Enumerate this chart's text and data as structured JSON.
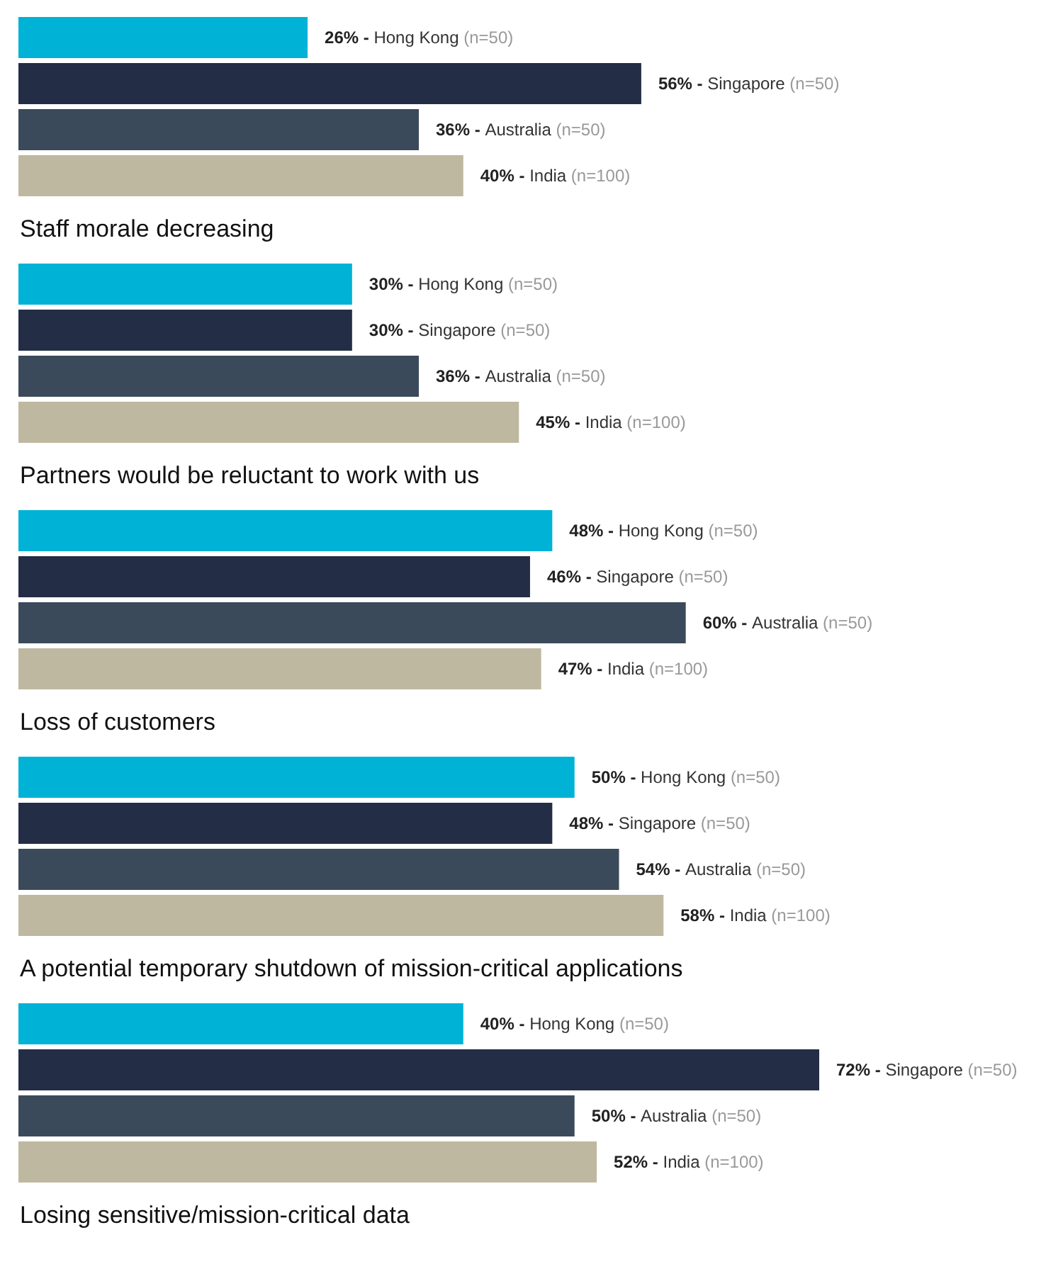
{
  "chart_data": [
    {
      "type": "bar",
      "orientation": "horizontal",
      "title": "Staff morale decreasing",
      "categories": [
        null,
        null,
        null,
        null
      ],
      "values": [
        26,
        56,
        36,
        40
      ],
      "colors": [
        "#00b2d6",
        "#232d45",
        "#3b4a5a",
        "#bfb8a0"
      ],
      "value_labels": [
        "26% - Hong Kong (n=50)",
        "56% - Singapore (n=50)",
        "36% - Australia (n=50)",
        "40% - India (n=100)"
      ],
      "tick_labels": false
    },
    {
      "type": "bar",
      "orientation": "horizontal",
      "title": "Partners would be reluctant to work with us",
      "categories": [
        null,
        null,
        null,
        null
      ],
      "values": [
        30,
        30,
        36,
        45
      ],
      "colors": [
        "#00b2d6",
        "#232d45",
        "#3b4a5a",
        "#bfb8a0"
      ],
      "value_labels": [
        "30% - Hong Kong (n=50)",
        "30% - Singapore (n=50)",
        "36% - Australia (n=50)",
        "45% - India (n=100)"
      ],
      "tick_labels": false
    },
    {
      "type": "bar",
      "orientation": "horizontal",
      "title": "Loss of customers",
      "categories": [
        null,
        null,
        null,
        null
      ],
      "values": [
        48,
        46,
        60,
        47
      ],
      "colors": [
        "#00b2d6",
        "#232d45",
        "#3b4a5a",
        "#bfb8a0"
      ],
      "value_labels": [
        "48% - Hong Kong (n=50)",
        "46% - Singapore (n=50)",
        "60% - Australia (n=50)",
        "47% - India (n=100)"
      ],
      "tick_labels": false
    },
    {
      "type": "bar",
      "orientation": "horizontal",
      "title": "A potential temporary shutdown of mission-critical applications",
      "categories": [
        null,
        null,
        null,
        null
      ],
      "values": [
        50,
        48,
        54,
        58
      ],
      "colors": [
        "#00b2d6",
        "#232d45",
        "#3b4a5a",
        "#bfb8a0"
      ],
      "value_labels": [
        "50% - Hong Kong (n=50)",
        "48% - Singapore (n=50)",
        "54% - Australia (n=50)",
        "58% - India (n=100)"
      ],
      "tick_labels": false
    },
    {
      "type": "bar",
      "orientation": "horizontal",
      "title": "Losing sensitive/mission-critical data",
      "categories": [
        null,
        null,
        null,
        null
      ],
      "values": [
        40,
        72,
        50,
        52
      ],
      "colors": [
        "#00b2d6",
        "#232d45",
        "#3b4a5a",
        "#bfb8a0"
      ],
      "value_labels": [
        "40% - Hong Kong (n=50)",
        "72% - Singapore (n=50)",
        "50% - Australia (n=50)",
        "52% - India (n=100)"
      ],
      "tick_labels": false
    }
  ]
}
